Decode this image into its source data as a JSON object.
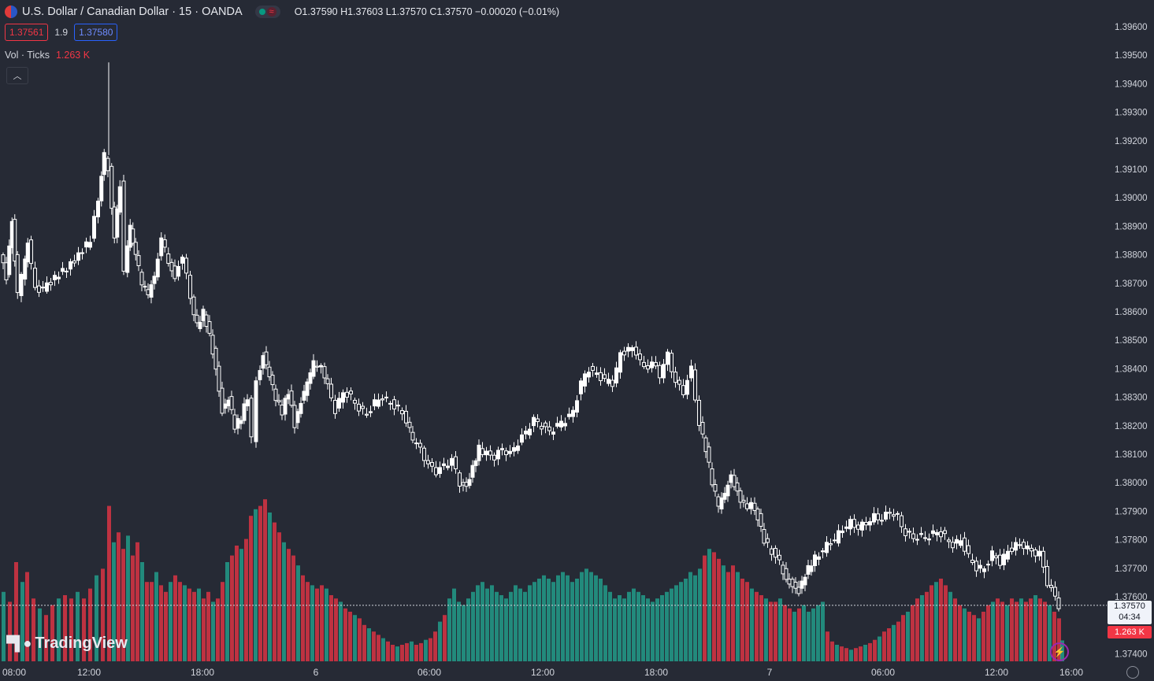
{
  "header": {
    "symbol_title": "U.S. Dollar / Canadian Dollar · 15 · OANDA",
    "ohlc": "O1.37590 H1.37603 L1.37570 C1.37570 −0.00020 (−0.01%)",
    "sell_price": "1.37561",
    "spread": "1.9",
    "buy_price": "1.37580",
    "flag_icon": "us-ca-flag-icon",
    "status_icons": [
      "market-open-dot-icon",
      "wave-icon"
    ]
  },
  "volume_legend": {
    "label": "Vol · Ticks",
    "value": "1.263 K"
  },
  "collapse_icon": "chevron-up-icon",
  "logo": {
    "text": "TradingView",
    "icon": "tradingview-logo-icon"
  },
  "price_tag": {
    "price": "1.37570",
    "countdown": "04:34"
  },
  "volume_tag": "1.263 K",
  "colors": {
    "background": "#262a35",
    "candle": "#ffffff",
    "volume_up": "#22ab94",
    "volume_down": "#f23645",
    "text": "#d1d4dc"
  },
  "chart_data": {
    "type": "candlestick",
    "y_axis_labels": [
      "1.39600",
      "1.39500",
      "1.39400",
      "1.39300",
      "1.39200",
      "1.39100",
      "1.39000",
      "1.38900",
      "1.38800",
      "1.38700",
      "1.38600",
      "1.38500",
      "1.38400",
      "1.38300",
      "1.38200",
      "1.38100",
      "1.38000",
      "1.37900",
      "1.37800",
      "1.37700",
      "1.37600",
      "1.37400"
    ],
    "x_axis_labels": [
      "08:00",
      "12:00",
      "18:00",
      "6",
      "06:00",
      "12:00",
      "18:00",
      "7",
      "06:00",
      "12:00",
      "16:00"
    ],
    "close_path": [
      [
        0,
        1.388
      ],
      [
        8,
        1.3872
      ],
      [
        15,
        1.3892
      ],
      [
        22,
        1.3866
      ],
      [
        28,
        1.3872
      ],
      [
        35,
        1.3885
      ],
      [
        45,
        1.3868
      ],
      [
        55,
        1.3868
      ],
      [
        70,
        1.3872
      ],
      [
        85,
        1.3875
      ],
      [
        100,
        1.388
      ],
      [
        115,
        1.3885
      ],
      [
        125,
        1.39
      ],
      [
        132,
        1.3915
      ],
      [
        138,
        1.391
      ],
      [
        145,
        1.3885
      ],
      [
        152,
        1.3905
      ],
      [
        158,
        1.3875
      ],
      [
        165,
        1.389
      ],
      [
        172,
        1.388
      ],
      [
        180,
        1.387
      ],
      [
        188,
        1.3866
      ],
      [
        196,
        1.3872
      ],
      [
        205,
        1.3885
      ],
      [
        214,
        1.3878
      ],
      [
        222,
        1.3872
      ],
      [
        232,
        1.388
      ],
      [
        242,
        1.3865
      ],
      [
        250,
        1.3855
      ],
      [
        258,
        1.386
      ],
      [
        266,
        1.3852
      ],
      [
        274,
        1.384
      ],
      [
        282,
        1.3825
      ],
      [
        290,
        1.383
      ],
      [
        298,
        1.382
      ],
      [
        306,
        1.3823
      ],
      [
        314,
        1.383
      ],
      [
        320,
        1.3815
      ],
      [
        326,
        1.3835
      ],
      [
        334,
        1.3845
      ],
      [
        342,
        1.3838
      ],
      [
        350,
        1.383
      ],
      [
        358,
        1.3825
      ],
      [
        366,
        1.3832
      ],
      [
        374,
        1.382
      ],
      [
        382,
        1.3828
      ],
      [
        390,
        1.3835
      ],
      [
        398,
        1.3842
      ],
      [
        408,
        1.384
      ],
      [
        416,
        1.3835
      ],
      [
        426,
        1.3825
      ],
      [
        436,
        1.3832
      ],
      [
        446,
        1.383
      ],
      [
        456,
        1.3826
      ],
      [
        466,
        1.3824
      ],
      [
        476,
        1.3828
      ],
      [
        486,
        1.383
      ],
      [
        496,
        1.3828
      ],
      [
        506,
        1.3826
      ],
      [
        516,
        1.3822
      ],
      [
        524,
        1.3815
      ],
      [
        534,
        1.3812
      ],
      [
        544,
        1.3806
      ],
      [
        554,
        1.3804
      ],
      [
        564,
        1.3806
      ],
      [
        574,
        1.3808
      ],
      [
        584,
        1.38
      ],
      [
        592,
        1.3798
      ],
      [
        600,
        1.3805
      ],
      [
        608,
        1.3812
      ],
      [
        618,
        1.381
      ],
      [
        628,
        1.3809
      ],
      [
        638,
        1.3812
      ],
      [
        648,
        1.381
      ],
      [
        658,
        1.3814
      ],
      [
        668,
        1.3818
      ],
      [
        678,
        1.3822
      ],
      [
        688,
        1.382
      ],
      [
        698,
        1.3818
      ],
      [
        708,
        1.382
      ],
      [
        718,
        1.3822
      ],
      [
        728,
        1.3825
      ],
      [
        738,
        1.3835
      ],
      [
        748,
        1.384
      ],
      [
        758,
        1.3838
      ],
      [
        768,
        1.3836
      ],
      [
        778,
        1.3835
      ],
      [
        788,
        1.3845
      ],
      [
        798,
        1.3847
      ],
      [
        808,
        1.3846
      ],
      [
        818,
        1.384
      ],
      [
        828,
        1.3842
      ],
      [
        838,
        1.3838
      ],
      [
        848,
        1.3845
      ],
      [
        858,
        1.3835
      ],
      [
        868,
        1.3832
      ],
      [
        878,
        1.384
      ],
      [
        888,
        1.382
      ],
      [
        896,
        1.3812
      ],
      [
        904,
        1.38
      ],
      [
        912,
        1.3792
      ],
      [
        920,
        1.3796
      ],
      [
        928,
        1.3802
      ],
      [
        936,
        1.3796
      ],
      [
        944,
        1.3792
      ],
      [
        954,
        1.3792
      ],
      [
        962,
        1.3788
      ],
      [
        970,
        1.378
      ],
      [
        980,
        1.3776
      ],
      [
        990,
        1.3772
      ],
      [
        998,
        1.3766
      ],
      [
        1006,
        1.3764
      ],
      [
        1014,
        1.3762
      ],
      [
        1022,
        1.3768
      ],
      [
        1030,
        1.3772
      ],
      [
        1040,
        1.3775
      ],
      [
        1050,
        1.3778
      ],
      [
        1060,
        1.378
      ],
      [
        1070,
        1.3784
      ],
      [
        1080,
        1.3786
      ],
      [
        1090,
        1.3784
      ],
      [
        1100,
        1.3786
      ],
      [
        1110,
        1.3788
      ],
      [
        1120,
        1.3787
      ],
      [
        1130,
        1.379
      ],
      [
        1140,
        1.3788
      ],
      [
        1150,
        1.3782
      ],
      [
        1160,
        1.3781
      ],
      [
        1170,
        1.3781
      ],
      [
        1180,
        1.3781
      ],
      [
        1190,
        1.3783
      ],
      [
        1200,
        1.3781
      ],
      [
        1210,
        1.3778
      ],
      [
        1220,
        1.378
      ],
      [
        1230,
        1.3774
      ],
      [
        1240,
        1.377
      ],
      [
        1250,
        1.377
      ],
      [
        1260,
        1.3775
      ],
      [
        1270,
        1.3772
      ],
      [
        1280,
        1.3776
      ],
      [
        1290,
        1.3778
      ],
      [
        1300,
        1.3778
      ],
      [
        1310,
        1.3776
      ],
      [
        1320,
        1.3775
      ],
      [
        1330,
        1.3765
      ],
      [
        1340,
        1.376
      ],
      [
        1344,
        1.3757
      ]
    ],
    "volume_bars": [
      [
        0,
        4200
      ],
      [
        8,
        3600
      ],
      [
        16,
        6000
      ],
      [
        24,
        4800
      ],
      [
        30,
        5400
      ],
      [
        38,
        3800
      ],
      [
        46,
        3200
      ],
      [
        54,
        2800
      ],
      [
        62,
        3400
      ],
      [
        70,
        3800
      ],
      [
        78,
        4000
      ],
      [
        86,
        3800
      ],
      [
        94,
        4200
      ],
      [
        102,
        3800
      ],
      [
        110,
        4400
      ],
      [
        118,
        5200
      ],
      [
        126,
        5600
      ],
      [
        134,
        9400
      ],
      [
        140,
        7200
      ],
      [
        146,
        7800
      ],
      [
        152,
        6800
      ],
      [
        158,
        7600
      ],
      [
        164,
        6400
      ],
      [
        170,
        7200
      ],
      [
        176,
        6000
      ],
      [
        182,
        4800
      ],
      [
        188,
        4800
      ],
      [
        194,
        5400
      ],
      [
        200,
        4600
      ],
      [
        206,
        4200
      ],
      [
        212,
        4800
      ],
      [
        218,
        5200
      ],
      [
        224,
        4800
      ],
      [
        230,
        4600
      ],
      [
        236,
        4400
      ],
      [
        242,
        4200
      ],
      [
        248,
        4400
      ],
      [
        254,
        3800
      ],
      [
        260,
        4200
      ],
      [
        266,
        3600
      ],
      [
        272,
        3800
      ],
      [
        278,
        4800
      ],
      [
        284,
        6000
      ],
      [
        290,
        6400
      ],
      [
        296,
        7000
      ],
      [
        302,
        6800
      ],
      [
        308,
        7400
      ],
      [
        314,
        8800
      ],
      [
        320,
        9200
      ],
      [
        326,
        9400
      ],
      [
        332,
        9800
      ],
      [
        338,
        9000
      ],
      [
        344,
        8400
      ],
      [
        350,
        7800
      ],
      [
        356,
        7200
      ],
      [
        362,
        6800
      ],
      [
        368,
        6400
      ],
      [
        374,
        5800
      ],
      [
        380,
        5200
      ],
      [
        386,
        4800
      ],
      [
        392,
        4600
      ],
      [
        398,
        4400
      ],
      [
        404,
        4600
      ],
      [
        410,
        4400
      ],
      [
        416,
        4000
      ],
      [
        422,
        3800
      ],
      [
        428,
        3600
      ],
      [
        434,
        3200
      ],
      [
        440,
        3000
      ],
      [
        446,
        2800
      ],
      [
        452,
        2600
      ],
      [
        458,
        2200
      ],
      [
        464,
        2000
      ],
      [
        470,
        1800
      ],
      [
        476,
        1600
      ],
      [
        482,
        1400
      ],
      [
        488,
        1200
      ],
      [
        494,
        1000
      ],
      [
        500,
        900
      ],
      [
        506,
        1000
      ],
      [
        512,
        1100
      ],
      [
        518,
        1200
      ],
      [
        524,
        1000
      ],
      [
        530,
        1100
      ],
      [
        536,
        1300
      ],
      [
        542,
        1400
      ],
      [
        548,
        1800
      ],
      [
        554,
        2400
      ],
      [
        560,
        2800
      ],
      [
        566,
        3800
      ],
      [
        572,
        4400
      ],
      [
        578,
        3600
      ],
      [
        584,
        3400
      ],
      [
        590,
        3800
      ],
      [
        596,
        4200
      ],
      [
        602,
        4600
      ],
      [
        608,
        4800
      ],
      [
        614,
        4400
      ],
      [
        620,
        4600
      ],
      [
        626,
        4200
      ],
      [
        632,
        4000
      ],
      [
        638,
        3800
      ],
      [
        644,
        4200
      ],
      [
        650,
        4600
      ],
      [
        656,
        4400
      ],
      [
        662,
        4200
      ],
      [
        668,
        4600
      ],
      [
        674,
        4800
      ],
      [
        680,
        5000
      ],
      [
        686,
        5200
      ],
      [
        692,
        5000
      ],
      [
        698,
        4800
      ],
      [
        704,
        5200
      ],
      [
        710,
        5400
      ],
      [
        716,
        5200
      ],
      [
        722,
        4800
      ],
      [
        728,
        5000
      ],
      [
        734,
        5400
      ],
      [
        740,
        5600
      ],
      [
        746,
        5400
      ],
      [
        752,
        5200
      ],
      [
        758,
        5000
      ],
      [
        764,
        4600
      ],
      [
        770,
        4200
      ],
      [
        776,
        3800
      ],
      [
        782,
        4000
      ],
      [
        788,
        3800
      ],
      [
        794,
        4200
      ],
      [
        800,
        4400
      ],
      [
        806,
        4200
      ],
      [
        812,
        4000
      ],
      [
        818,
        3800
      ],
      [
        824,
        3600
      ],
      [
        830,
        3800
      ],
      [
        836,
        4000
      ],
      [
        842,
        4200
      ],
      [
        848,
        4400
      ],
      [
        854,
        4600
      ],
      [
        860,
        4800
      ],
      [
        866,
        5000
      ],
      [
        872,
        5400
      ],
      [
        878,
        5200
      ],
      [
        884,
        5600
      ],
      [
        890,
        6400
      ],
      [
        896,
        6800
      ],
      [
        902,
        6600
      ],
      [
        908,
        6200
      ],
      [
        914,
        5800
      ],
      [
        920,
        5400
      ],
      [
        926,
        5800
      ],
      [
        932,
        5400
      ],
      [
        938,
        5000
      ],
      [
        944,
        4800
      ],
      [
        950,
        4400
      ],
      [
        956,
        4200
      ],
      [
        962,
        4000
      ],
      [
        968,
        3800
      ],
      [
        974,
        3600
      ],
      [
        980,
        3600
      ],
      [
        986,
        3800
      ],
      [
        992,
        3400
      ],
      [
        998,
        3200
      ],
      [
        1004,
        3000
      ],
      [
        1010,
        3200
      ],
      [
        1016,
        3400
      ],
      [
        1022,
        3000
      ],
      [
        1028,
        3200
      ],
      [
        1034,
        3400
      ],
      [
        1040,
        3600
      ],
      [
        1046,
        1800
      ],
      [
        1052,
        1200
      ],
      [
        1058,
        1000
      ],
      [
        1064,
        900
      ],
      [
        1070,
        800
      ],
      [
        1076,
        700
      ],
      [
        1082,
        800
      ],
      [
        1088,
        900
      ],
      [
        1094,
        1000
      ],
      [
        1100,
        1100
      ],
      [
        1106,
        1300
      ],
      [
        1112,
        1500
      ],
      [
        1118,
        1800
      ],
      [
        1124,
        2000
      ],
      [
        1130,
        2200
      ],
      [
        1136,
        2400
      ],
      [
        1142,
        2800
      ],
      [
        1148,
        3000
      ],
      [
        1154,
        3400
      ],
      [
        1160,
        3800
      ],
      [
        1166,
        4000
      ],
      [
        1172,
        4200
      ],
      [
        1178,
        4600
      ],
      [
        1184,
        4800
      ],
      [
        1190,
        5000
      ],
      [
        1196,
        4600
      ],
      [
        1202,
        4200
      ],
      [
        1208,
        3800
      ],
      [
        1214,
        3400
      ],
      [
        1220,
        3200
      ],
      [
        1226,
        3000
      ],
      [
        1232,
        2800
      ],
      [
        1238,
        2600
      ],
      [
        1244,
        3000
      ],
      [
        1250,
        3400
      ],
      [
        1256,
        3600
      ],
      [
        1262,
        3800
      ],
      [
        1268,
        3600
      ],
      [
        1274,
        3400
      ],
      [
        1280,
        3800
      ],
      [
        1286,
        3600
      ],
      [
        1292,
        3800
      ],
      [
        1298,
        3600
      ],
      [
        1304,
        3800
      ],
      [
        1310,
        4000
      ],
      [
        1316,
        3800
      ],
      [
        1322,
        3600
      ],
      [
        1328,
        3400
      ],
      [
        1334,
        3000
      ],
      [
        1340,
        2600
      ],
      [
        1344,
        1263
      ]
    ]
  }
}
